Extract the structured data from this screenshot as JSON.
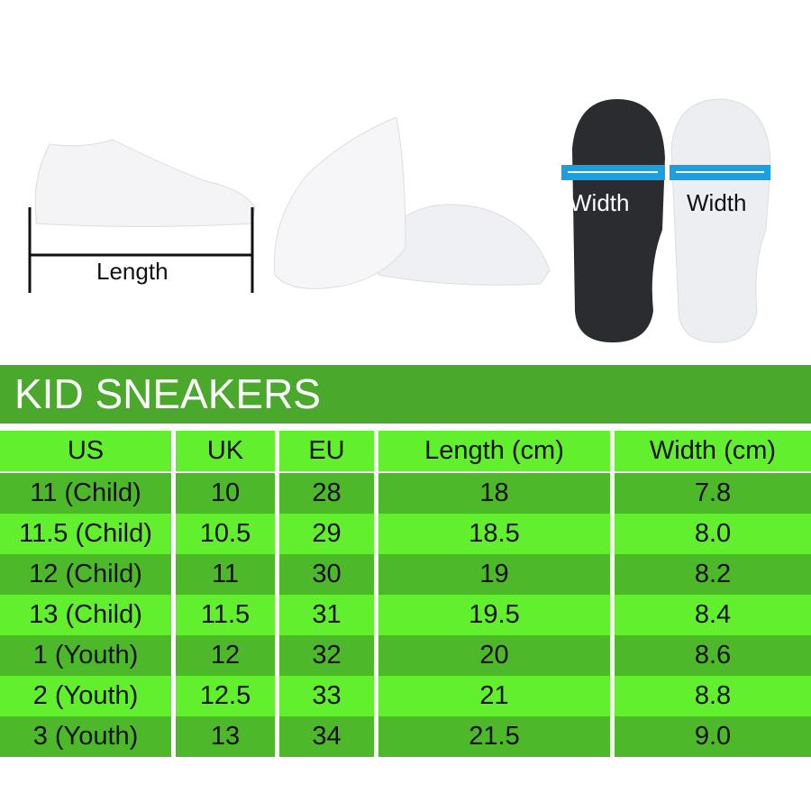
{
  "images": {
    "length_label": "Length",
    "width_label_dark": "Width",
    "width_label_light": "Width"
  },
  "title": "KID SNEAKERS",
  "colors": {
    "title_bar": "#4aa82c",
    "row_light": "#62f02e",
    "row_dark": "#4eb82b",
    "width_arrow": "#1aa0e0"
  },
  "table": {
    "headers": [
      "US",
      "UK",
      "EU",
      "Length (cm)",
      "Width (cm)"
    ],
    "rows": [
      [
        "11 (Child)",
        "10",
        "28",
        "18",
        "7.8"
      ],
      [
        "11.5 (Child)",
        "10.5",
        "29",
        "18.5",
        "8.0"
      ],
      [
        "12 (Child)",
        "11",
        "30",
        "19",
        "8.2"
      ],
      [
        "13 (Child)",
        "11.5",
        "31",
        "19.5",
        "8.4"
      ],
      [
        "1 (Youth)",
        "12",
        "32",
        "20",
        "8.6"
      ],
      [
        "2 (Youth)",
        "12.5",
        "33",
        "21",
        "8.8"
      ],
      [
        "3 (Youth)",
        "13",
        "34",
        "21.5",
        "9.0"
      ]
    ]
  }
}
